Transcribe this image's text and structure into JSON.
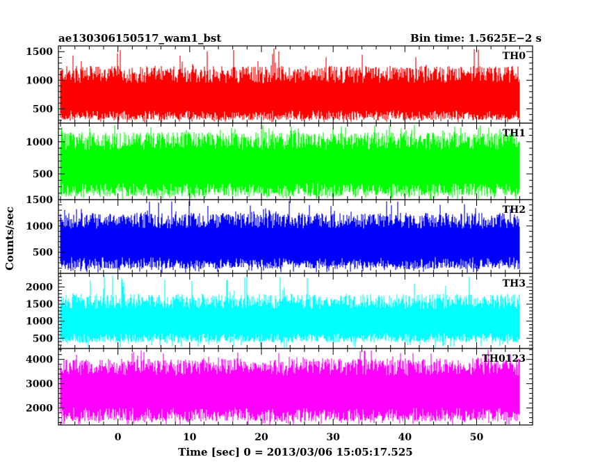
{
  "header": {
    "title": "ae130306150517_wam1_bst",
    "bin_time": "Bin time: 1.5625E−2 s"
  },
  "chart_data": {
    "type": "line",
    "title": "ae130306150517_wam1_bst",
    "subtitle": "Bin time: 1.5625E−2 s",
    "xlabel": "Time [sec] 0 = 2013/03/06 15:05:17.525",
    "ylabel": "Counts/sec",
    "xlim": [
      -8.3,
      57.8
    ],
    "x_data_range": [
      -8.0,
      56.0
    ],
    "x_ticks": [
      0,
      10,
      20,
      30,
      40,
      50
    ],
    "x_tick_labels": [
      "0",
      "10",
      "20",
      "30",
      "40",
      "50"
    ],
    "bin_time_sec": 0.015625,
    "grid": false,
    "legend": "none",
    "panels": [
      {
        "name": "TH0",
        "color": "#ff0000",
        "ylim": [
          250,
          1600
        ],
        "y_ticks": [
          500,
          1000,
          1500
        ],
        "y_tick_labels": [
          "500",
          "1000",
          "1500"
        ],
        "typical_min": 300,
        "typical_max": 1250,
        "peak_max": 1580,
        "mean": 700
      },
      {
        "name": "TH1",
        "color": "#00ff00",
        "ylim": [
          100,
          1290
        ],
        "y_ticks": [
          500,
          1000
        ],
        "y_tick_labels": [
          "500",
          "1000"
        ],
        "typical_min": 150,
        "typical_max": 1150,
        "peak_max": 1270,
        "mean": 650
      },
      {
        "name": "TH2",
        "color": "#0000ff",
        "ylim": [
          100,
          1500
        ],
        "y_ticks": [
          500,
          1000,
          1500
        ],
        "y_tick_labels": [
          "500",
          "1000",
          "1500"
        ],
        "typical_min": 180,
        "typical_max": 1250,
        "peak_max": 1480,
        "mean": 700
      },
      {
        "name": "TH3",
        "color": "#00ffff",
        "ylim": [
          200,
          2400
        ],
        "y_ticks": [
          500,
          1000,
          1500,
          2000
        ],
        "y_tick_labels": [
          "500",
          "1000",
          "1500",
          "2000"
        ],
        "typical_min": 380,
        "typical_max": 1800,
        "peak_max": 2350,
        "mean": 1000
      },
      {
        "name": "TH0123",
        "color": "#ff00ff",
        "ylim": [
          1300,
          4450
        ],
        "y_ticks": [
          2000,
          3000,
          4000
        ],
        "y_tick_labels": [
          "2000",
          "3000",
          "4000"
        ],
        "typical_min": 1450,
        "typical_max": 4050,
        "peak_max": 4400,
        "mean": 2750
      }
    ]
  }
}
